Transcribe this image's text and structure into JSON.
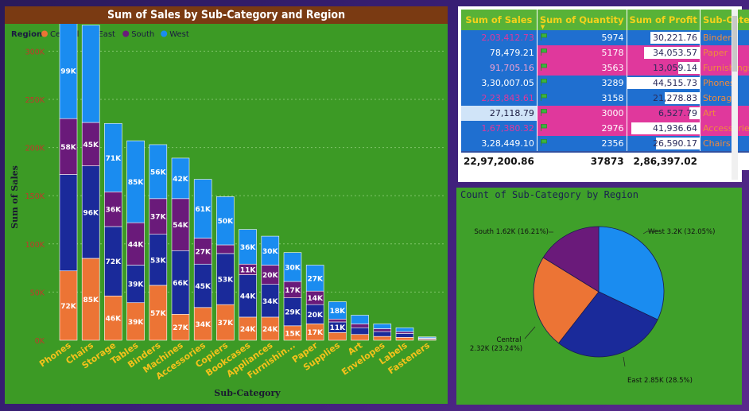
{
  "bar_chart": {
    "title": "Sum of Sales by Sub-Category and Region",
    "legend_title": "Region",
    "xlabel": "Sub-Category",
    "ylabel": "Sum of Sales",
    "y_ticks": [
      "0K",
      "50K",
      "100K",
      "150K",
      "200K",
      "250K",
      "300K"
    ],
    "colors": {
      "Central": "#ec7435",
      "East": "#1a2a9a",
      "South": "#6a1a7a",
      "West": "#1a8cf0"
    }
  },
  "chart_data": [
    {
      "type": "bar",
      "stacked": true,
      "title": "Sum of Sales by Sub-Category and Region",
      "xlabel": "Sub-Category",
      "ylabel": "Sum of Sales",
      "ylim": [
        0,
        330000
      ],
      "grid": true,
      "legend": "top-left",
      "categories": [
        "Phones",
        "Chairs",
        "Storage",
        "Tables",
        "Binders",
        "Machines",
        "Accessories",
        "Copiers",
        "Bookcases",
        "Appliances",
        "Furnishin...",
        "Paper",
        "Supplies",
        "Art",
        "Envelopes",
        "Labels",
        "Fasteners"
      ],
      "series": [
        {
          "name": "Central",
          "values": [
            72000,
            85000,
            46000,
            39000,
            57000,
            27000,
            34000,
            37000,
            24000,
            24000,
            15000,
            17000,
            8000,
            6000,
            4000,
            3000,
            1000
          ],
          "labels": [
            "72K",
            "85K",
            "46K",
            "39K",
            "57K",
            "27K",
            "34K",
            "37K",
            "24K",
            "24K",
            "15K",
            "17K",
            "",
            "",
            "",
            "",
            ""
          ]
        },
        {
          "name": "East",
          "values": [
            100000,
            96000,
            72000,
            39000,
            53000,
            66000,
            45000,
            53000,
            44000,
            34000,
            29000,
            20000,
            11000,
            7000,
            5000,
            4000,
            1000
          ],
          "labels": [
            "",
            "96K",
            "72K",
            "39K",
            "53K",
            "66K",
            "45K",
            "53K",
            "44K",
            "34K",
            "29K",
            "20K",
            "11K",
            "",
            "",
            "",
            ""
          ]
        },
        {
          "name": "South",
          "values": [
            58000,
            45000,
            36000,
            44000,
            37000,
            54000,
            27000,
            9000,
            11000,
            20000,
            17000,
            14000,
            3000,
            4000,
            3000,
            2000,
            500
          ],
          "labels": [
            "58K",
            "45K",
            "36K",
            "44K",
            "37K",
            "54K",
            "27K",
            "",
            "11K",
            "20K",
            "17K",
            "14K",
            "",
            "",
            "",
            "",
            ""
          ]
        },
        {
          "name": "West",
          "values": [
            99000,
            101000,
            71000,
            85000,
            56000,
            42000,
            61000,
            50000,
            36000,
            30000,
            30000,
            27000,
            18000,
            9000,
            5000,
            4000,
            1000
          ],
          "labels": [
            "99K",
            "",
            "71K",
            "85K",
            "56K",
            "42K",
            "61K",
            "50K",
            "36K",
            "30K",
            "30K",
            "27K",
            "18K",
            "",
            "",
            "",
            ""
          ]
        }
      ]
    },
    {
      "type": "table",
      "columns": [
        "Sum of Sales",
        "Sum of Quantity",
        "Sum of Profit",
        "Sub-Category"
      ],
      "rows": [
        {
          "sales": "2,03,412.73",
          "qty": "5974",
          "profit": "30,221.76",
          "profit_value": 30221.76,
          "subcat": "Binders"
        },
        {
          "sales": "78,479.21",
          "qty": "5178",
          "profit": "34,053.57",
          "profit_value": 34053.57,
          "subcat": "Paper"
        },
        {
          "sales": "91,705.16",
          "qty": "3563",
          "profit": "13,059.14",
          "profit_value": 13059.14,
          "subcat": "Furnishings"
        },
        {
          "sales": "3,30,007.05",
          "qty": "3289",
          "profit": "44,515.73",
          "profit_value": 44515.73,
          "subcat": "Phones"
        },
        {
          "sales": "2,23,843.61",
          "qty": "3158",
          "profit": "21,278.83",
          "profit_value": 21278.83,
          "subcat": "Storage"
        },
        {
          "sales": "27,118.79",
          "qty": "3000",
          "profit": "6,527.79",
          "profit_value": 6527.79,
          "subcat": "Art"
        },
        {
          "sales": "1,67,380.32",
          "qty": "2976",
          "profit": "41,936.64",
          "profit_value": 41936.64,
          "subcat": "Accessories"
        },
        {
          "sales": "3,28,449.10",
          "qty": "2356",
          "profit": "26,590.17",
          "profit_value": 26590.17,
          "subcat": "Chairs"
        }
      ],
      "totals": {
        "sales": "22,97,200.86",
        "qty": "37873",
        "profit": "2,86,397.02"
      }
    },
    {
      "type": "pie",
      "title": "Count of Sub-Category by Region",
      "slices": [
        {
          "name": "West",
          "value": 3200,
          "label": "West 3.2K (32.05%)",
          "color": "#1a8cf0"
        },
        {
          "name": "East",
          "value": 2850,
          "label": "East 2.85K (28.5%)",
          "color": "#1a2a9a"
        },
        {
          "name": "Central",
          "value": 2320,
          "label_line1": "Central",
          "label_line2": "2.32K (23.24%)",
          "color": "#ec7435"
        },
        {
          "name": "South",
          "value": 1620,
          "label": "South 1.62K (16.21%)",
          "color": "#6a1a7a"
        }
      ]
    }
  ],
  "table_colors": {
    "row_blue": "#1f6fd0",
    "row_pink": "#e0389c",
    "row_light": "#d0e4f8",
    "accent_header": "#58b237",
    "header_text": "#f4d21b"
  }
}
